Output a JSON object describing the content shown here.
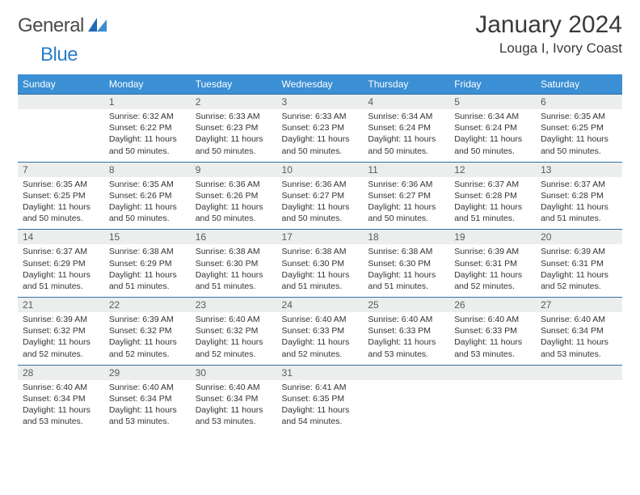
{
  "brand": {
    "name_a": "General",
    "name_b": "Blue"
  },
  "title": "January 2024",
  "location": "Louga I, Ivory Coast",
  "colors": {
    "header_bg": "#3b8fd4",
    "header_text": "#ffffff",
    "row_border": "#2f6fa8",
    "daynum_bg": "#eceeee",
    "brand_blue": "#2a7fc9",
    "text": "#333333"
  },
  "weekdays": [
    "Sunday",
    "Monday",
    "Tuesday",
    "Wednesday",
    "Thursday",
    "Friday",
    "Saturday"
  ],
  "weeks": [
    [
      null,
      {
        "n": "1",
        "sr": "Sunrise: 6:32 AM",
        "ss": "Sunset: 6:22 PM",
        "dl": "Daylight: 11 hours and 50 minutes."
      },
      {
        "n": "2",
        "sr": "Sunrise: 6:33 AM",
        "ss": "Sunset: 6:23 PM",
        "dl": "Daylight: 11 hours and 50 minutes."
      },
      {
        "n": "3",
        "sr": "Sunrise: 6:33 AM",
        "ss": "Sunset: 6:23 PM",
        "dl": "Daylight: 11 hours and 50 minutes."
      },
      {
        "n": "4",
        "sr": "Sunrise: 6:34 AM",
        "ss": "Sunset: 6:24 PM",
        "dl": "Daylight: 11 hours and 50 minutes."
      },
      {
        "n": "5",
        "sr": "Sunrise: 6:34 AM",
        "ss": "Sunset: 6:24 PM",
        "dl": "Daylight: 11 hours and 50 minutes."
      },
      {
        "n": "6",
        "sr": "Sunrise: 6:35 AM",
        "ss": "Sunset: 6:25 PM",
        "dl": "Daylight: 11 hours and 50 minutes."
      }
    ],
    [
      {
        "n": "7",
        "sr": "Sunrise: 6:35 AM",
        "ss": "Sunset: 6:25 PM",
        "dl": "Daylight: 11 hours and 50 minutes."
      },
      {
        "n": "8",
        "sr": "Sunrise: 6:35 AM",
        "ss": "Sunset: 6:26 PM",
        "dl": "Daylight: 11 hours and 50 minutes."
      },
      {
        "n": "9",
        "sr": "Sunrise: 6:36 AM",
        "ss": "Sunset: 6:26 PM",
        "dl": "Daylight: 11 hours and 50 minutes."
      },
      {
        "n": "10",
        "sr": "Sunrise: 6:36 AM",
        "ss": "Sunset: 6:27 PM",
        "dl": "Daylight: 11 hours and 50 minutes."
      },
      {
        "n": "11",
        "sr": "Sunrise: 6:36 AM",
        "ss": "Sunset: 6:27 PM",
        "dl": "Daylight: 11 hours and 50 minutes."
      },
      {
        "n": "12",
        "sr": "Sunrise: 6:37 AM",
        "ss": "Sunset: 6:28 PM",
        "dl": "Daylight: 11 hours and 51 minutes."
      },
      {
        "n": "13",
        "sr": "Sunrise: 6:37 AM",
        "ss": "Sunset: 6:28 PM",
        "dl": "Daylight: 11 hours and 51 minutes."
      }
    ],
    [
      {
        "n": "14",
        "sr": "Sunrise: 6:37 AM",
        "ss": "Sunset: 6:29 PM",
        "dl": "Daylight: 11 hours and 51 minutes."
      },
      {
        "n": "15",
        "sr": "Sunrise: 6:38 AM",
        "ss": "Sunset: 6:29 PM",
        "dl": "Daylight: 11 hours and 51 minutes."
      },
      {
        "n": "16",
        "sr": "Sunrise: 6:38 AM",
        "ss": "Sunset: 6:30 PM",
        "dl": "Daylight: 11 hours and 51 minutes."
      },
      {
        "n": "17",
        "sr": "Sunrise: 6:38 AM",
        "ss": "Sunset: 6:30 PM",
        "dl": "Daylight: 11 hours and 51 minutes."
      },
      {
        "n": "18",
        "sr": "Sunrise: 6:38 AM",
        "ss": "Sunset: 6:30 PM",
        "dl": "Daylight: 11 hours and 51 minutes."
      },
      {
        "n": "19",
        "sr": "Sunrise: 6:39 AM",
        "ss": "Sunset: 6:31 PM",
        "dl": "Daylight: 11 hours and 52 minutes."
      },
      {
        "n": "20",
        "sr": "Sunrise: 6:39 AM",
        "ss": "Sunset: 6:31 PM",
        "dl": "Daylight: 11 hours and 52 minutes."
      }
    ],
    [
      {
        "n": "21",
        "sr": "Sunrise: 6:39 AM",
        "ss": "Sunset: 6:32 PM",
        "dl": "Daylight: 11 hours and 52 minutes."
      },
      {
        "n": "22",
        "sr": "Sunrise: 6:39 AM",
        "ss": "Sunset: 6:32 PM",
        "dl": "Daylight: 11 hours and 52 minutes."
      },
      {
        "n": "23",
        "sr": "Sunrise: 6:40 AM",
        "ss": "Sunset: 6:32 PM",
        "dl": "Daylight: 11 hours and 52 minutes."
      },
      {
        "n": "24",
        "sr": "Sunrise: 6:40 AM",
        "ss": "Sunset: 6:33 PM",
        "dl": "Daylight: 11 hours and 52 minutes."
      },
      {
        "n": "25",
        "sr": "Sunrise: 6:40 AM",
        "ss": "Sunset: 6:33 PM",
        "dl": "Daylight: 11 hours and 53 minutes."
      },
      {
        "n": "26",
        "sr": "Sunrise: 6:40 AM",
        "ss": "Sunset: 6:33 PM",
        "dl": "Daylight: 11 hours and 53 minutes."
      },
      {
        "n": "27",
        "sr": "Sunrise: 6:40 AM",
        "ss": "Sunset: 6:34 PM",
        "dl": "Daylight: 11 hours and 53 minutes."
      }
    ],
    [
      {
        "n": "28",
        "sr": "Sunrise: 6:40 AM",
        "ss": "Sunset: 6:34 PM",
        "dl": "Daylight: 11 hours and 53 minutes."
      },
      {
        "n": "29",
        "sr": "Sunrise: 6:40 AM",
        "ss": "Sunset: 6:34 PM",
        "dl": "Daylight: 11 hours and 53 minutes."
      },
      {
        "n": "30",
        "sr": "Sunrise: 6:40 AM",
        "ss": "Sunset: 6:34 PM",
        "dl": "Daylight: 11 hours and 53 minutes."
      },
      {
        "n": "31",
        "sr": "Sunrise: 6:41 AM",
        "ss": "Sunset: 6:35 PM",
        "dl": "Daylight: 11 hours and 54 minutes."
      },
      null,
      null,
      null
    ]
  ]
}
